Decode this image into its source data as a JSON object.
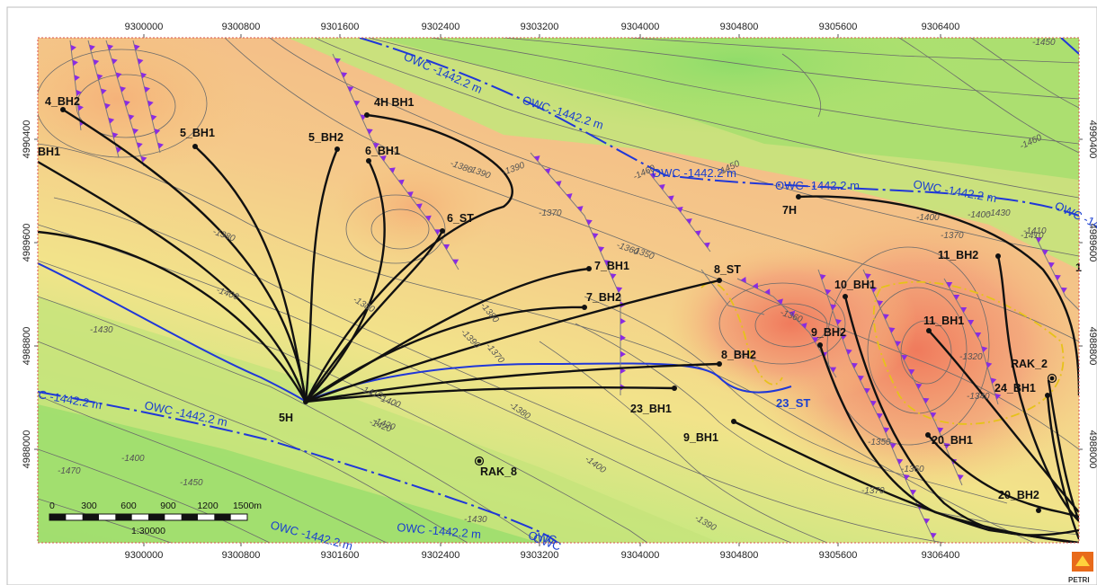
{
  "axes": {
    "x_ticks": [
      "9300000",
      "9300800",
      "9301600",
      "9302400",
      "9303200",
      "9304000",
      "9304800",
      "9305600",
      "9306400"
    ],
    "y_ticks": [
      "4990400",
      "4989600",
      "4988800",
      "4988000"
    ]
  },
  "wells": [
    {
      "name": "4_BH2"
    },
    {
      "name": "BH1"
    },
    {
      "name": "5_BH1"
    },
    {
      "name": "5_BH2"
    },
    {
      "name": "4H BH1"
    },
    {
      "name": "6_BH1"
    },
    {
      "name": "6_ST"
    },
    {
      "name": "7_BH1"
    },
    {
      "name": "7_BH2"
    },
    {
      "name": "8_ST"
    },
    {
      "name": "7H"
    },
    {
      "name": "11_BH2"
    },
    {
      "name": "10_BH1"
    },
    {
      "name": "9_BH2"
    },
    {
      "name": "11_BH1"
    },
    {
      "name": "8_BH2"
    },
    {
      "name": "RAK_2"
    },
    {
      "name": "24_BH1"
    },
    {
      "name": "23_BH1"
    },
    {
      "name": "23_ST"
    },
    {
      "name": "5H"
    },
    {
      "name": "9_BH1"
    },
    {
      "name": "20_BH1"
    },
    {
      "name": "RAK_8"
    },
    {
      "name": "20_BH2"
    },
    {
      "name": "1"
    }
  ],
  "owc_labels": [
    "OWC -1442.2 m",
    "OWC -1442.2 m",
    "OWC -1442.2 m",
    "OWC -1442.2 m",
    "OWC -1442.2 m",
    "OWC -1442.2 m",
    "OWC",
    "C -1442.2 m",
    "OWC -1442.2 m",
    "OWC -1442.2 m",
    "OWC -1442.2 m",
    "OWC"
  ],
  "contour_labels": [
    "-1450",
    "-1470",
    "-1460",
    "-1460",
    "-1450",
    "-1390",
    "-1380",
    "-1400",
    "-1420",
    "-1410",
    "-1430",
    "-1400",
    "-1370",
    "-1390",
    "-1380",
    "-1400",
    "-1370",
    "-1350",
    "-1360",
    "-1410",
    "-1380",
    "-1400",
    "-1390",
    "-1380",
    "-1370",
    "-1360",
    "-1430",
    "-1410",
    "-1420",
    "-1380",
    "-1400",
    "-1470",
    "-1400",
    "-1450",
    "-1430",
    "-1390",
    "-1340",
    "-1350",
    "-1360",
    "-1370",
    "-1320"
  ],
  "scale_bar": {
    "ticks": [
      "0",
      "300",
      "600",
      "900",
      "1200",
      "1500m"
    ],
    "ratio": "1:30000"
  },
  "logo_text": "PETRI"
}
